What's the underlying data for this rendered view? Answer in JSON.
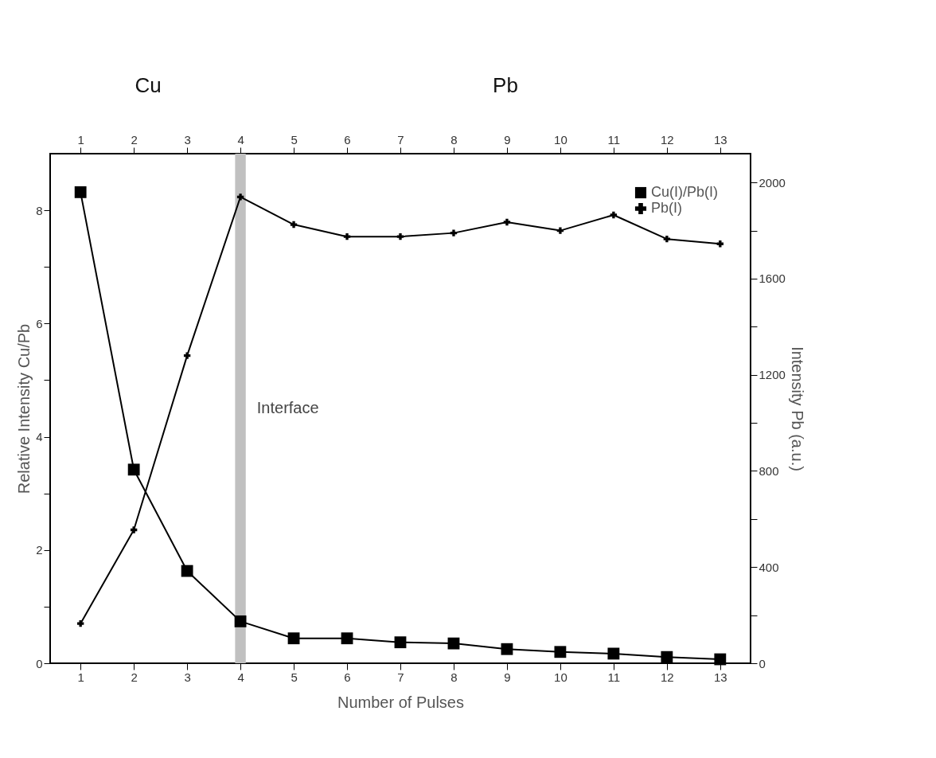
{
  "chart_data": {
    "type": "line",
    "xlabel": "Number of Pulses",
    "ylabel": "Relative Intensity Cu/Pb",
    "y2label": "Intensity Pb (a.u.)",
    "x": [
      1,
      2,
      3,
      4,
      5,
      6,
      7,
      8,
      9,
      10,
      11,
      12,
      13
    ],
    "series": [
      {
        "name": "Cu(I)/Pb(I)",
        "color": "#000000",
        "marker": "square",
        "values": [
          8.32,
          3.42,
          1.63,
          0.74,
          0.44,
          0.44,
          0.37,
          0.35,
          0.25,
          0.2,
          0.17,
          0.11,
          0.07
        ]
      },
      {
        "name": "Pb(I)",
        "color": "#000000",
        "marker": "cross",
        "axis": "y2",
        "values": [
          165,
          555,
          1280,
          1940,
          1825,
          1775,
          1775,
          1790,
          1835,
          1800,
          1865,
          1765,
          1745
        ]
      }
    ],
    "xlim": [
      0.43,
      13.57
    ],
    "xticks": [
      1,
      2,
      3,
      4,
      5,
      6,
      7,
      8,
      9,
      10,
      11,
      12,
      13
    ],
    "x2lim": [
      0.43,
      13.57
    ],
    "x2ticks": [
      1,
      2,
      3,
      4,
      5,
      6,
      7,
      8,
      9,
      10,
      11,
      12,
      13
    ],
    "ylim": [
      0,
      9
    ],
    "yticks": [
      0,
      {
        "value": 1,
        "label": null
      },
      2,
      {
        "value": 3,
        "label": null
      },
      4,
      {
        "value": 5,
        "label": null
      },
      6,
      {
        "value": 7,
        "label": null
      },
      8
    ],
    "y2lim": [
      0,
      2120
    ],
    "y2ticks": [
      0,
      {
        "value": 200,
        "label": null
      },
      400,
      {
        "value": 600,
        "label": null
      },
      800,
      {
        "value": 1000,
        "label": null
      },
      1200,
      {
        "value": 1400,
        "label": null
      },
      1600,
      {
        "value": 1800,
        "label": null
      },
      2000
    ],
    "bands": [
      {
        "axis": "x",
        "from": 3.9,
        "to": 4.1,
        "label": "Interface",
        "color": "#c0c0c0"
      }
    ],
    "annotations": [
      "Cu",
      "Pb"
    ],
    "legend": "top right",
    "grid": false,
    "line_style": "solid"
  }
}
